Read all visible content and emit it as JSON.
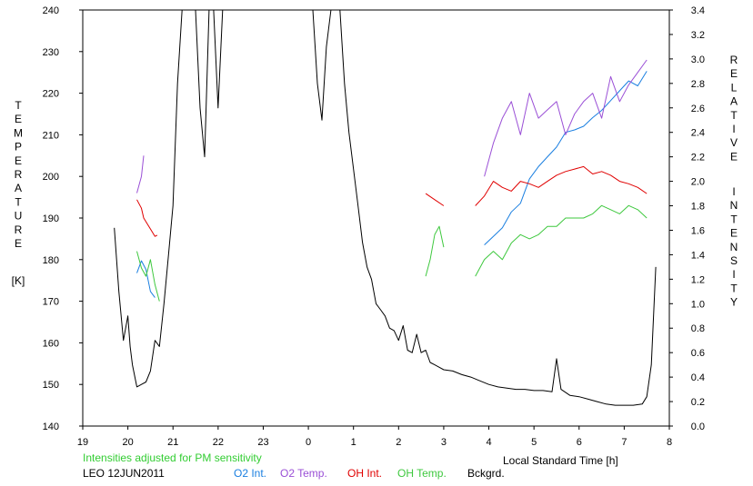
{
  "chart_data": {
    "type": "line",
    "title": "",
    "xlabel": "Local Standard Time [h]",
    "ylabel_left_letters": [
      "T",
      "E",
      "M",
      "P",
      "E",
      "R",
      "A",
      "T",
      "U",
      "R",
      "E"
    ],
    "ylabel_left_unit": "[K]",
    "ylabel_right_word1": [
      "R",
      "E",
      "L",
      "A",
      "T",
      "I",
      "V",
      "E"
    ],
    "ylabel_right_word2": [
      "I",
      "N",
      "T",
      "E",
      "N",
      "S",
      "I",
      "T",
      "Y"
    ],
    "xlim": [
      19,
      32
    ],
    "x_tick_values": [
      19,
      20,
      21,
      22,
      23,
      24,
      25,
      26,
      27,
      28,
      29,
      30,
      31,
      32
    ],
    "x_tick_labels": [
      "19",
      "20",
      "21",
      "22",
      "23",
      "0",
      "1",
      "2",
      "3",
      "4",
      "5",
      "6",
      "7",
      "8"
    ],
    "ylim_left": [
      140,
      240
    ],
    "y_left_ticks": [
      "140",
      "150",
      "160",
      "170",
      "180",
      "190",
      "200",
      "210",
      "220",
      "230",
      "240"
    ],
    "ylim_right": [
      0,
      3.4
    ],
    "y_right_ticks": [
      "0.0",
      "0.2",
      "0.4",
      "0.6",
      "0.8",
      "1.0",
      "1.2",
      "1.4",
      "1.6",
      "1.8",
      "2.0",
      "2.2",
      "2.4",
      "2.6",
      "2.8",
      "3.0",
      "3.2",
      "3.4"
    ],
    "grid": false,
    "note": "Intensities adjusted for PM sensitivity",
    "station": "LEO 12JUN2011",
    "series": [
      {
        "name": "O2 Int.",
        "color": "#1a7fe0",
        "axis": "right",
        "x": [
          20.2,
          20.3,
          20.4,
          20.5,
          20.6,
          27.9,
          28.1,
          28.3,
          28.5,
          28.7,
          28.9,
          29.1,
          29.3,
          29.5,
          29.7,
          29.9,
          30.1,
          30.3,
          30.5,
          30.7,
          30.9,
          31.1,
          31.3,
          31.5
        ],
        "y": [
          1.25,
          1.35,
          1.28,
          1.1,
          1.05,
          1.48,
          1.55,
          1.62,
          1.75,
          1.82,
          2.02,
          2.12,
          2.2,
          2.28,
          2.4,
          2.42,
          2.45,
          2.52,
          2.58,
          2.66,
          2.74,
          2.82,
          2.78,
          2.9
        ]
      },
      {
        "name": "O2 Temp.",
        "color": "#9a4fd6",
        "axis": "left",
        "x": [
          20.2,
          20.3,
          20.35,
          27.9,
          28.1,
          28.3,
          28.5,
          28.7,
          28.9,
          29.1,
          29.3,
          29.5,
          29.7,
          29.9,
          30.1,
          30.3,
          30.5,
          30.7,
          30.9,
          31.1,
          31.3,
          31.5
        ],
        "y": [
          196,
          200,
          205,
          200,
          208,
          214,
          218,
          210,
          220,
          214,
          216,
          218,
          210,
          215,
          218,
          220,
          214,
          224,
          218,
          222,
          225,
          228
        ]
      },
      {
        "name": "OH Int.",
        "color": "#e00000",
        "axis": "right",
        "x": [
          20.2,
          20.3,
          20.35,
          20.6,
          20.65,
          26.6,
          26.8,
          27.0,
          27.7,
          27.9,
          28.1,
          28.3,
          28.5,
          28.7,
          28.9,
          29.1,
          29.3,
          29.5,
          29.7,
          29.9,
          30.1,
          30.3,
          30.5,
          30.7,
          30.9,
          31.1,
          31.3,
          31.5
        ],
        "y": [
          1.85,
          1.78,
          1.7,
          1.55,
          1.56,
          1.9,
          1.85,
          1.8,
          1.8,
          1.88,
          2.0,
          1.95,
          1.92,
          2.0,
          1.98,
          1.95,
          2.0,
          2.05,
          2.08,
          2.1,
          2.12,
          2.06,
          2.08,
          2.05,
          2.0,
          1.98,
          1.95,
          1.9
        ]
      },
      {
        "name": "OH Temp.",
        "color": "#3ec83e",
        "axis": "left",
        "x": [
          20.2,
          20.3,
          20.4,
          20.5,
          20.6,
          20.7,
          26.6,
          26.7,
          26.8,
          26.9,
          27.0,
          27.7,
          27.9,
          28.1,
          28.3,
          28.5,
          28.7,
          28.9,
          29.1,
          29.3,
          29.5,
          29.7,
          29.9,
          30.1,
          30.3,
          30.5,
          30.7,
          30.9,
          31.1,
          31.3,
          31.5
        ],
        "y": [
          182,
          178,
          176,
          180,
          174,
          170,
          176,
          180,
          186,
          188,
          183,
          176,
          180,
          182,
          180,
          184,
          186,
          185,
          186,
          188,
          188,
          190,
          190,
          190,
          191,
          193,
          192,
          191,
          193,
          192,
          190
        ]
      },
      {
        "name": "Bckgrd.",
        "color": "#000000",
        "axis": "right",
        "x": [
          19.7,
          19.8,
          19.9,
          20.0,
          20.05,
          20.1,
          20.2,
          20.3,
          20.4,
          20.5,
          20.6,
          20.7,
          20.8,
          20.9,
          21.0,
          21.1,
          21.2,
          21.3,
          21.4,
          21.5,
          21.6,
          21.7,
          21.8,
          21.9,
          22.0,
          22.1,
          24.0,
          24.1,
          24.2,
          24.3,
          24.4,
          24.5,
          24.6,
          24.7,
          24.8,
          24.9,
          25.0,
          25.1,
          25.2,
          25.3,
          25.4,
          25.5,
          25.6,
          25.7,
          25.8,
          25.9,
          26.0,
          26.1,
          26.2,
          26.3,
          26.4,
          26.5,
          26.6,
          26.7,
          26.8,
          26.9,
          27.0,
          27.2,
          27.4,
          27.6,
          27.8,
          28.0,
          28.2,
          28.4,
          28.6,
          28.8,
          29.0,
          29.2,
          29.4,
          29.5,
          29.6,
          29.8,
          30.0,
          30.2,
          30.4,
          30.6,
          30.8,
          31.0,
          31.2,
          31.4,
          31.5,
          31.6,
          31.7
        ],
        "y": [
          1.62,
          1.1,
          0.7,
          0.9,
          0.65,
          0.5,
          0.32,
          0.34,
          0.36,
          0.45,
          0.7,
          0.65,
          1.0,
          1.4,
          1.8,
          2.8,
          3.4,
          3.4,
          3.4,
          3.4,
          2.6,
          2.2,
          3.4,
          3.4,
          2.6,
          3.4,
          3.4,
          3.4,
          2.8,
          2.5,
          3.1,
          3.4,
          3.4,
          3.4,
          2.8,
          2.4,
          2.1,
          1.8,
          1.5,
          1.3,
          1.2,
          1.0,
          0.95,
          0.9,
          0.8,
          0.78,
          0.7,
          0.82,
          0.62,
          0.6,
          0.75,
          0.6,
          0.62,
          0.52,
          0.5,
          0.48,
          0.46,
          0.45,
          0.42,
          0.4,
          0.37,
          0.34,
          0.32,
          0.31,
          0.3,
          0.3,
          0.29,
          0.29,
          0.28,
          0.55,
          0.3,
          0.25,
          0.24,
          0.22,
          0.2,
          0.18,
          0.17,
          0.17,
          0.17,
          0.18,
          0.24,
          0.5,
          1.3
        ]
      }
    ]
  }
}
